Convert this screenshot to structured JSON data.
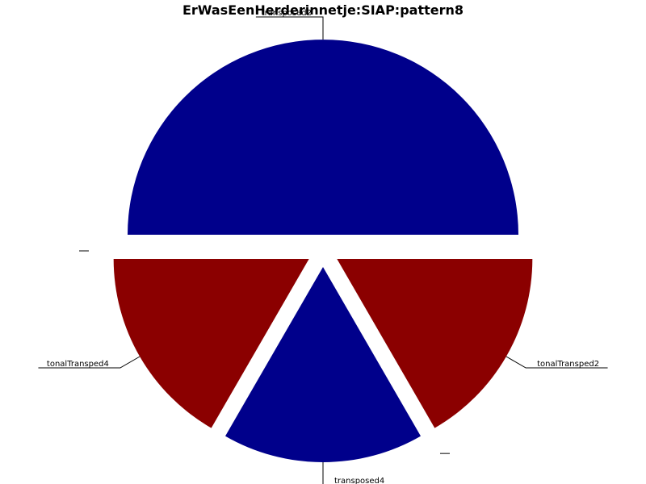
{
  "chart_data": {
    "type": "pie",
    "title": "ErWasEenHerderinnetje:SIAP:pattern8",
    "slices": [
      {
        "label": "tonalTransped2",
        "value": 1,
        "color": "#8b0000"
      },
      {
        "label": "",
        "value": 0,
        "color": "#00008b"
      },
      {
        "label": "transposed4",
        "value": 1,
        "color": "#00008b"
      },
      {
        "label": "tonalTransped4",
        "value": 1,
        "color": "#8b0000"
      },
      {
        "label": "",
        "value": 0,
        "color": "#8b0000"
      },
      {
        "label": "transposed2",
        "value": 3,
        "color": "#00008b"
      }
    ],
    "start_angle_deg": 0,
    "direction": "clockwise",
    "exploded": true,
    "legend": "none"
  }
}
